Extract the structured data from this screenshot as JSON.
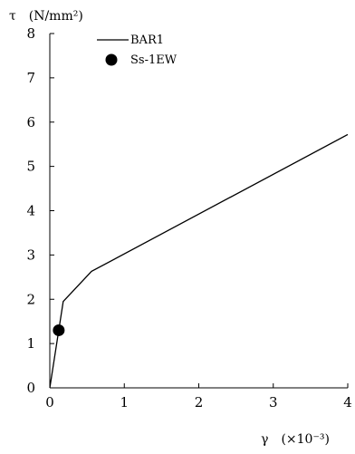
{
  "chart_data": {
    "type": "line",
    "title": "",
    "ylabel": "τ　(N/mm²)",
    "xlabel": "γ　(×10⁻³)",
    "xlim": [
      0,
      4
    ],
    "ylim": [
      0,
      8
    ],
    "xticks": [
      0,
      1,
      2,
      3,
      4
    ],
    "yticks": [
      0,
      1,
      2,
      3,
      4,
      5,
      6,
      7,
      8
    ],
    "grid": false,
    "legend_placement": "top-left",
    "series": [
      {
        "name": "BAR1",
        "type": "line",
        "color": "#000000",
        "x": [
          0,
          0.18,
          0.56,
          4.0
        ],
        "y": [
          0,
          1.95,
          2.63,
          5.72
        ]
      },
      {
        "name": "Ss-1EW",
        "type": "scatter",
        "color": "#000000",
        "x": [
          0.12
        ],
        "y": [
          1.3
        ]
      }
    ]
  }
}
